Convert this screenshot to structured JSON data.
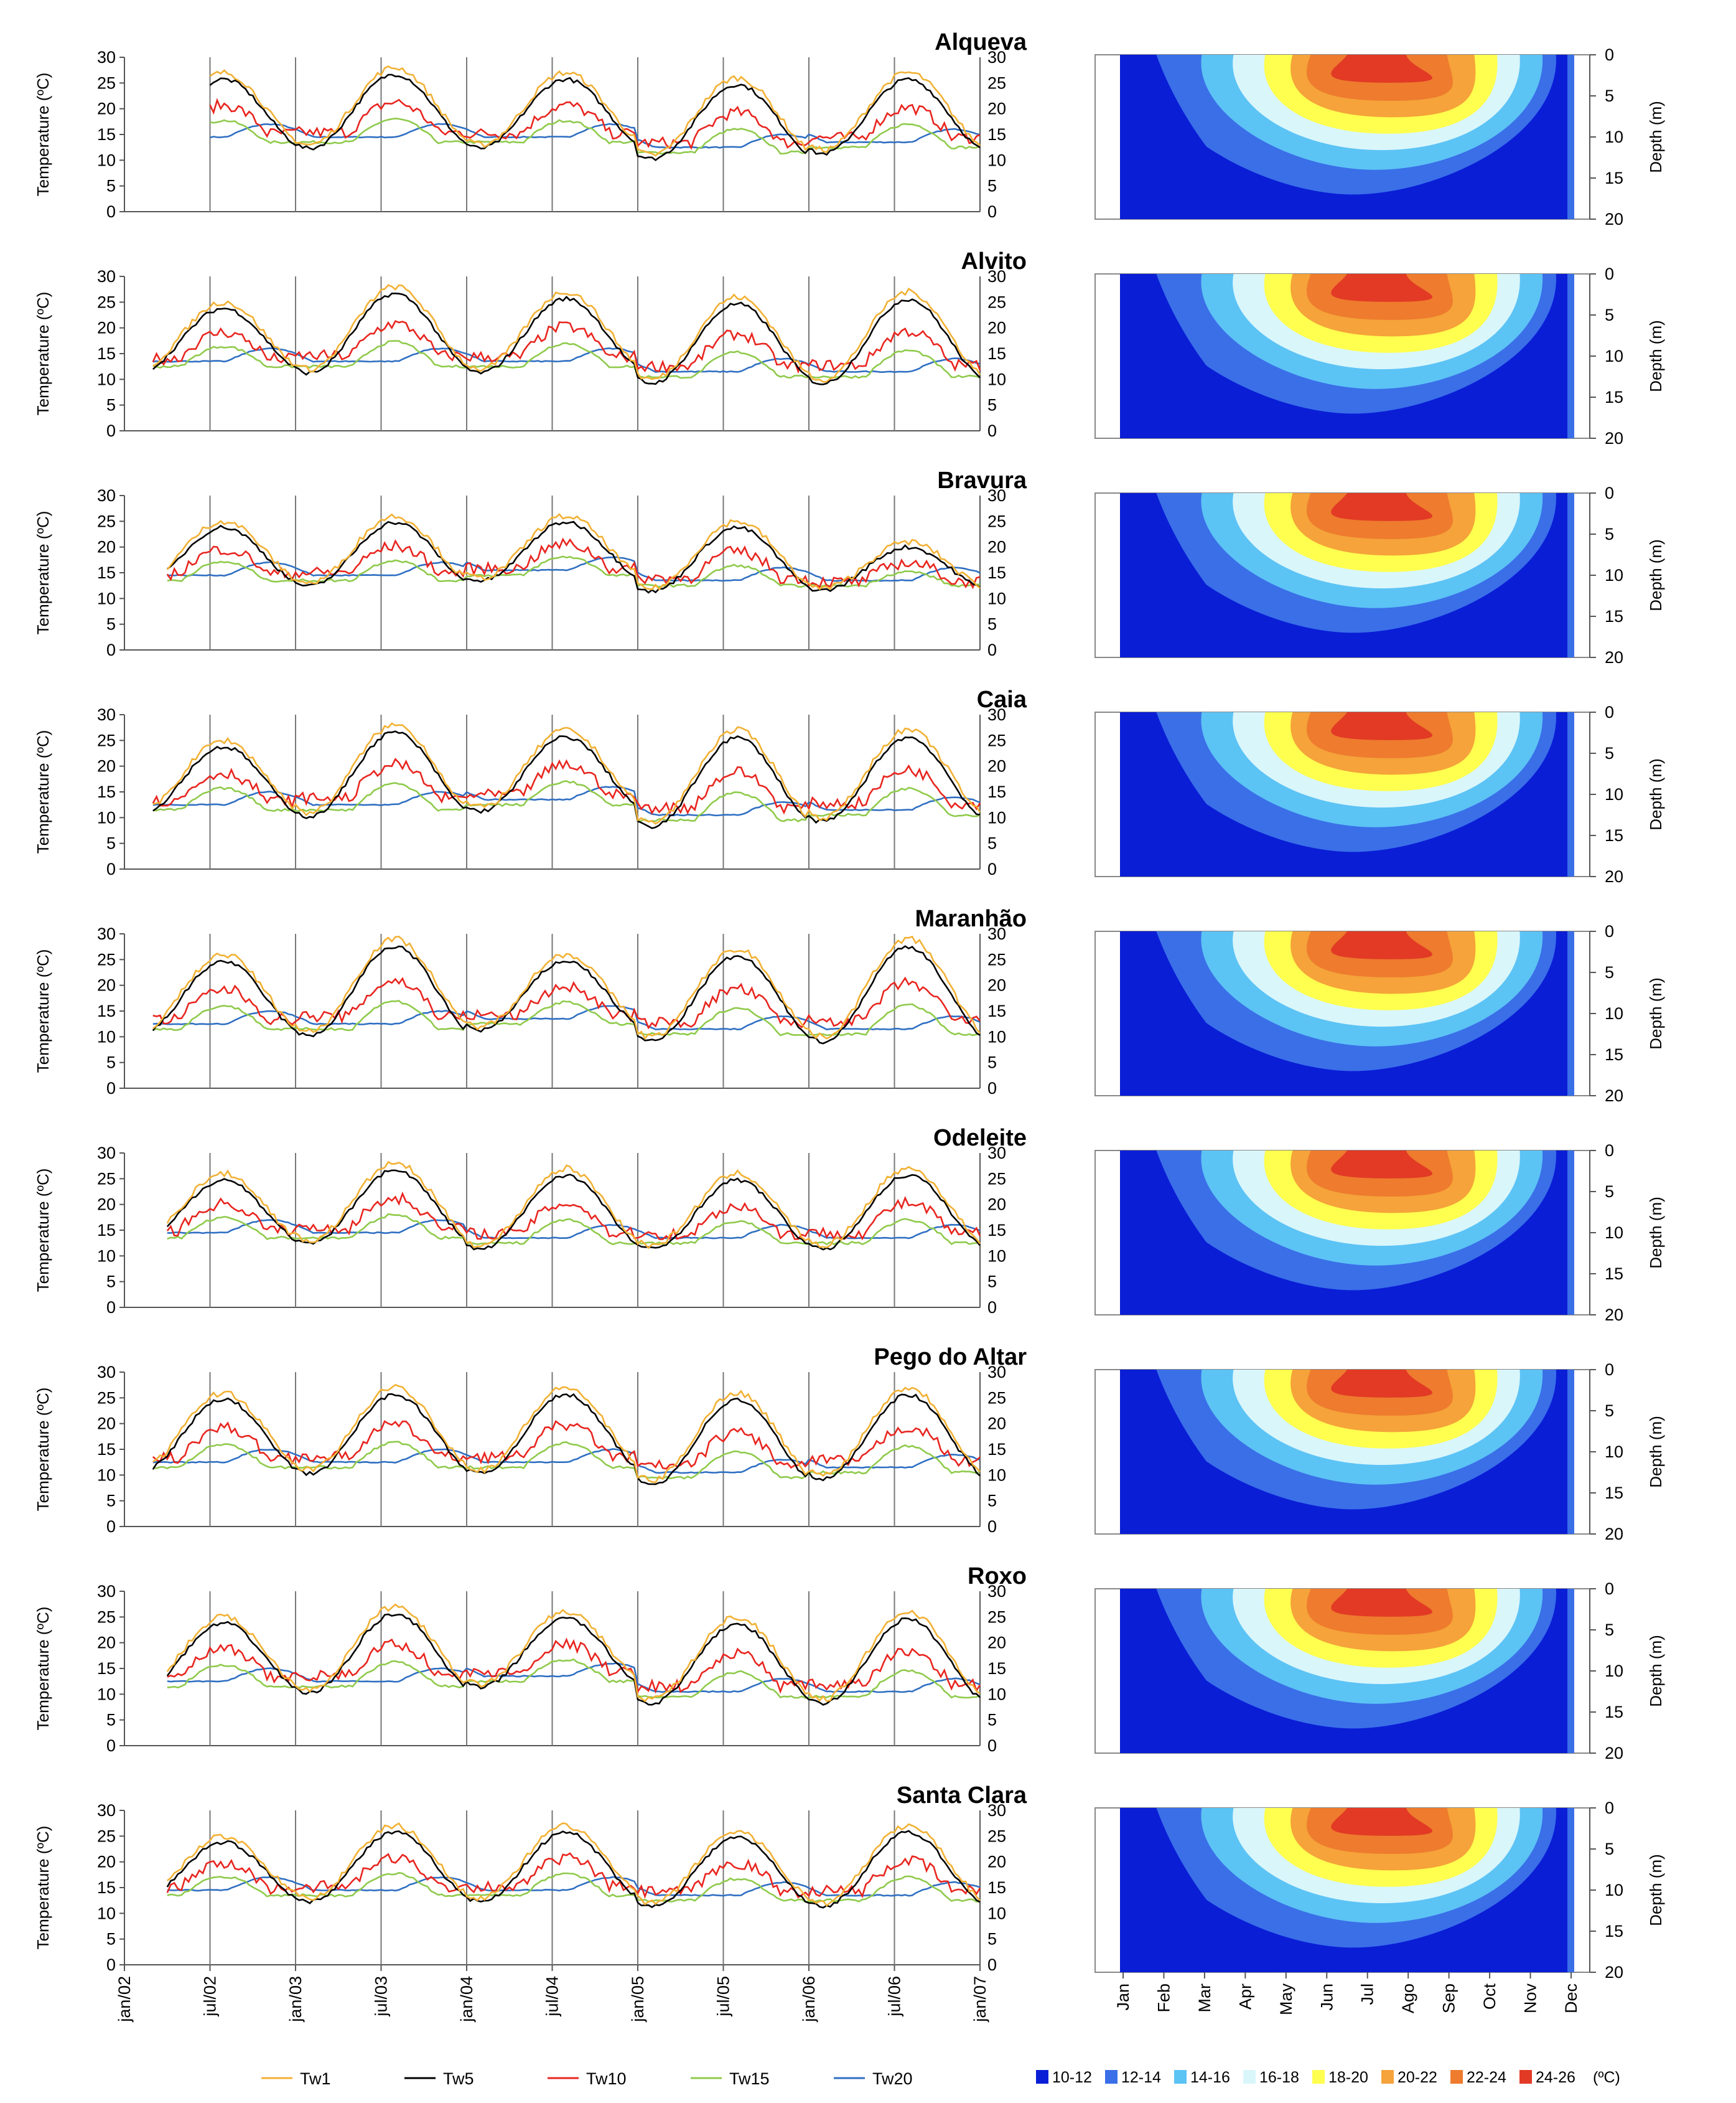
{
  "figure": {
    "series_legend": [
      {
        "name": "Tw1",
        "color": "#f2b134"
      },
      {
        "name": "Tw5",
        "color": "#000000"
      },
      {
        "name": "Tw10",
        "color": "#e8251f"
      },
      {
        "name": "Tw15",
        "color": "#8fca4b"
      },
      {
        "name": "Tw20",
        "color": "#2f6fc2"
      }
    ],
    "contour_legend": {
      "bands": [
        {
          "label": "10-12",
          "color": "#0a1ed6"
        },
        {
          "label": "12-14",
          "color": "#3a6fe8"
        },
        {
          "label": "14-16",
          "color": "#5cc3f5"
        },
        {
          "label": "16-18",
          "color": "#d9f6fb"
        },
        {
          "label": "18-20",
          "color": "#ffff4f"
        },
        {
          "label": "20-22",
          "color": "#f5a33a"
        },
        {
          "label": "22-24",
          "color": "#ee7b2e"
        },
        {
          "label": "24-26",
          "color": "#e23a25"
        }
      ],
      "unit": "(ºC)"
    }
  },
  "chart_data": [
    {
      "type": "line",
      "title": "Alqueva",
      "ylabel": "Temperature (ºC)",
      "ylim": [
        0,
        30
      ],
      "yticks": [
        0,
        5,
        10,
        15,
        20,
        25,
        30
      ],
      "x_labels": [
        "jan/02",
        "jul/02",
        "jan/03",
        "jul/03",
        "jan/04",
        "jul/04",
        "jan/05",
        "jul/05",
        "jan/06",
        "jul/06",
        "jan/07"
      ],
      "data_start": "jul/02",
      "peaks": [
        27,
        28,
        27,
        26,
        27
      ],
      "troughs": [
        12,
        12,
        10,
        11
      ],
      "peak_season": "Jul-Aug",
      "contour": {
        "type": "heatmap",
        "x_labels": [
          "Jan",
          "Feb",
          "Mar",
          "Apr",
          "May",
          "Jun",
          "Jul",
          "Ago",
          "Sep",
          "Oct",
          "Nov",
          "Dec"
        ],
        "ylabel": "Depth (m)",
        "ylim": [
          0,
          20
        ],
        "yticks": [
          0,
          5,
          10,
          15,
          20
        ],
        "max_band": "24-26",
        "deep_band": "10-12"
      }
    },
    {
      "type": "line",
      "title": "Alvito",
      "ylabel": "Temperature (ºC)",
      "ylim": [
        0,
        30
      ],
      "yticks": [
        0,
        5,
        10,
        15,
        20,
        25,
        30
      ],
      "x_labels": [
        "jan/02",
        "jul/02",
        "jan/03",
        "jul/03",
        "jan/04",
        "jul/04",
        "jan/05",
        "jul/05",
        "jan/06",
        "jul/06",
        "jan/07"
      ],
      "data_start": "mar/02",
      "peaks": [
        25,
        28,
        27,
        26,
        27
      ],
      "troughs": [
        11,
        11,
        9,
        9
      ],
      "peak_season": "Jul-Aug",
      "contour": {
        "type": "heatmap",
        "x_labels": [
          "Jan",
          "Feb",
          "Mar",
          "Apr",
          "May",
          "Jun",
          "Jul",
          "Ago",
          "Sep",
          "Oct",
          "Nov",
          "Dec"
        ],
        "ylabel": "Depth (m)",
        "ylim": [
          0,
          20
        ],
        "yticks": [
          0,
          5,
          10,
          15,
          20
        ],
        "max_band": "24-26",
        "deep_band": "10-12"
      }
    },
    {
      "type": "line",
      "title": "Bravura",
      "ylabel": "Temperature (ºC)",
      "ylim": [
        0,
        30
      ],
      "yticks": [
        0,
        5,
        10,
        15,
        20,
        25,
        30
      ],
      "x_labels": [
        "jan/02",
        "jul/02",
        "jan/03",
        "jul/03",
        "jan/04",
        "jul/04",
        "jan/05",
        "jul/05",
        "jan/06",
        "jul/06",
        "jan/07"
      ],
      "data_start": "apr/02",
      "peaks": [
        25,
        26,
        26,
        25,
        21
      ],
      "troughs": [
        12,
        13,
        11,
        11
      ],
      "peak_season": "Jul-Aug",
      "contour": {
        "type": "heatmap",
        "x_labels": [
          "Jan",
          "Feb",
          "Mar",
          "Apr",
          "May",
          "Jun",
          "Jul",
          "Ago",
          "Sep",
          "Oct",
          "Nov",
          "Dec"
        ],
        "ylabel": "Depth (m)",
        "ylim": [
          0,
          20
        ],
        "yticks": [
          0,
          5,
          10,
          15,
          20
        ],
        "max_band": "24-26",
        "deep_band": "10-12"
      }
    },
    {
      "type": "line",
      "title": "Caia",
      "ylabel": "Temperature (ºC)",
      "ylim": [
        0,
        30
      ],
      "yticks": [
        0,
        5,
        10,
        15,
        20,
        25,
        30
      ],
      "x_labels": [
        "jan/02",
        "jul/02",
        "jan/03",
        "jul/03",
        "jan/04",
        "jul/04",
        "jan/05",
        "jul/05",
        "jan/06",
        "jul/06",
        "jan/07"
      ],
      "data_start": "mar/02",
      "peaks": [
        25,
        28,
        27,
        27,
        27
      ],
      "troughs": [
        10,
        11,
        8,
        9
      ],
      "peak_season": "Jul-Aug",
      "contour": {
        "type": "heatmap",
        "x_labels": [
          "Jan",
          "Feb",
          "Mar",
          "Apr",
          "May",
          "Jun",
          "Jul",
          "Ago",
          "Sep",
          "Oct",
          "Nov",
          "Dec"
        ],
        "ylabel": "Depth (m)",
        "ylim": [
          0,
          20
        ],
        "yticks": [
          0,
          5,
          10,
          15,
          20
        ],
        "max_band": "24-26",
        "deep_band": "10-12"
      }
    },
    {
      "type": "line",
      "title": "Maranhão",
      "ylabel": "Temperature (ºC)",
      "ylim": [
        0,
        30
      ],
      "yticks": [
        0,
        5,
        10,
        15,
        20,
        25,
        30
      ],
      "x_labels": [
        "jan/02",
        "jul/02",
        "jan/03",
        "jul/03",
        "jan/04",
        "jul/04",
        "jan/05",
        "jul/05",
        "jan/06",
        "jul/06",
        "jan/07"
      ],
      "data_start": "mar/02",
      "peaks": [
        26,
        29,
        26,
        27,
        29
      ],
      "troughs": [
        10,
        11,
        9,
        9
      ],
      "peak_season": "Jul-Aug",
      "contour": {
        "type": "heatmap",
        "x_labels": [
          "Jan",
          "Feb",
          "Mar",
          "Apr",
          "May",
          "Jun",
          "Jul",
          "Ago",
          "Sep",
          "Oct",
          "Nov",
          "Dec"
        ],
        "ylabel": "Depth (m)",
        "ylim": [
          0,
          20
        ],
        "yticks": [
          0,
          5,
          10,
          15,
          20
        ],
        "max_band": "24-26",
        "deep_band": "10-12"
      }
    },
    {
      "type": "line",
      "title": "Odeleite",
      "ylabel": "Temperature (ºC)",
      "ylim": [
        0,
        30
      ],
      "yticks": [
        0,
        5,
        10,
        15,
        20,
        25,
        30
      ],
      "x_labels": [
        "jan/02",
        "jul/02",
        "jan/03",
        "jul/03",
        "jan/04",
        "jul/04",
        "jan/05",
        "jul/05",
        "jan/06",
        "jul/06",
        "jan/07"
      ],
      "data_start": "apr/02",
      "peaks": [
        26,
        28,
        27,
        26,
        27
      ],
      "troughs": [
        12,
        11,
        11,
        11
      ],
      "peak_season": "Jul-Aug",
      "contour": {
        "type": "heatmap",
        "x_labels": [
          "Jan",
          "Feb",
          "Mar",
          "Apr",
          "May",
          "Jun",
          "Jul",
          "Ago",
          "Sep",
          "Oct",
          "Nov",
          "Dec"
        ],
        "ylabel": "Depth (m)",
        "ylim": [
          0,
          20
        ],
        "yticks": [
          0,
          5,
          10,
          15,
          20
        ],
        "max_band": "24-26",
        "deep_band": "10-12"
      }
    },
    {
      "type": "line",
      "title": "Pego do Altar",
      "ylabel": "Temperature (ºC)",
      "ylim": [
        0,
        30
      ],
      "yticks": [
        0,
        5,
        10,
        15,
        20,
        25,
        30
      ],
      "x_labels": [
        "jan/02",
        "jul/02",
        "jan/03",
        "jul/03",
        "jan/04",
        "jul/04",
        "jan/05",
        "jul/05",
        "jan/06",
        "jul/06",
        "jan/07"
      ],
      "data_start": "mar/02",
      "peaks": [
        26,
        27,
        27,
        26,
        27
      ],
      "troughs": [
        10,
        10,
        8,
        9
      ],
      "peak_season": "Jul-Aug",
      "contour": {
        "type": "heatmap",
        "x_labels": [
          "Jan",
          "Feb",
          "Mar",
          "Apr",
          "May",
          "Jun",
          "Jul",
          "Ago",
          "Sep",
          "Oct",
          "Nov",
          "Dec"
        ],
        "ylabel": "Depth (m)",
        "ylim": [
          0,
          20
        ],
        "yticks": [
          0,
          5,
          10,
          15,
          20
        ],
        "max_band": "24-26",
        "deep_band": "10-12"
      }
    },
    {
      "type": "line",
      "title": "Roxo",
      "ylabel": "Temperature (ºC)",
      "ylim": [
        0,
        30
      ],
      "yticks": [
        0,
        5,
        10,
        15,
        20,
        25,
        30
      ],
      "x_labels": [
        "jan/02",
        "jul/02",
        "jan/03",
        "jul/03",
        "jan/04",
        "jul/04",
        "jan/05",
        "jul/05",
        "jan/06",
        "jul/06",
        "jan/07"
      ],
      "data_start": "apr/02",
      "peaks": [
        25,
        27,
        26,
        25,
        26
      ],
      "troughs": [
        10,
        11,
        8,
        8
      ],
      "peak_season": "Jul-Aug",
      "contour": {
        "type": "heatmap",
        "x_labels": [
          "Jan",
          "Feb",
          "Mar",
          "Apr",
          "May",
          "Jun",
          "Jul",
          "Ago",
          "Sep",
          "Oct",
          "Nov",
          "Dec"
        ],
        "ylabel": "Depth (m)",
        "ylim": [
          0,
          20
        ],
        "yticks": [
          0,
          5,
          10,
          15,
          20
        ],
        "max_band": "24-26",
        "deep_band": "10-12"
      }
    },
    {
      "type": "line",
      "title": "Santa Clara",
      "ylabel": "Temperature (ºC)",
      "ylim": [
        0,
        30
      ],
      "yticks": [
        0,
        5,
        10,
        15,
        20,
        25,
        30
      ],
      "x_labels": [
        "jan/02",
        "jul/02",
        "jan/03",
        "jul/03",
        "jan/04",
        "jul/04",
        "jan/05",
        "jul/05",
        "jan/06",
        "jul/06",
        "jan/07"
      ],
      "data_start": "apr/02",
      "peaks": [
        25,
        27,
        27,
        26,
        27
      ],
      "troughs": [
        12,
        12,
        11,
        11
      ],
      "peak_season": "Jul-Aug",
      "contour": {
        "type": "heatmap",
        "x_labels": [
          "Jan",
          "Feb",
          "Mar",
          "Apr",
          "May",
          "Jun",
          "Jul",
          "Ago",
          "Sep",
          "Oct",
          "Nov",
          "Dec"
        ],
        "ylabel": "Depth (m)",
        "ylim": [
          0,
          20
        ],
        "yticks": [
          0,
          5,
          10,
          15,
          20
        ],
        "max_band": "24-26",
        "deep_band": "10-12"
      }
    }
  ]
}
